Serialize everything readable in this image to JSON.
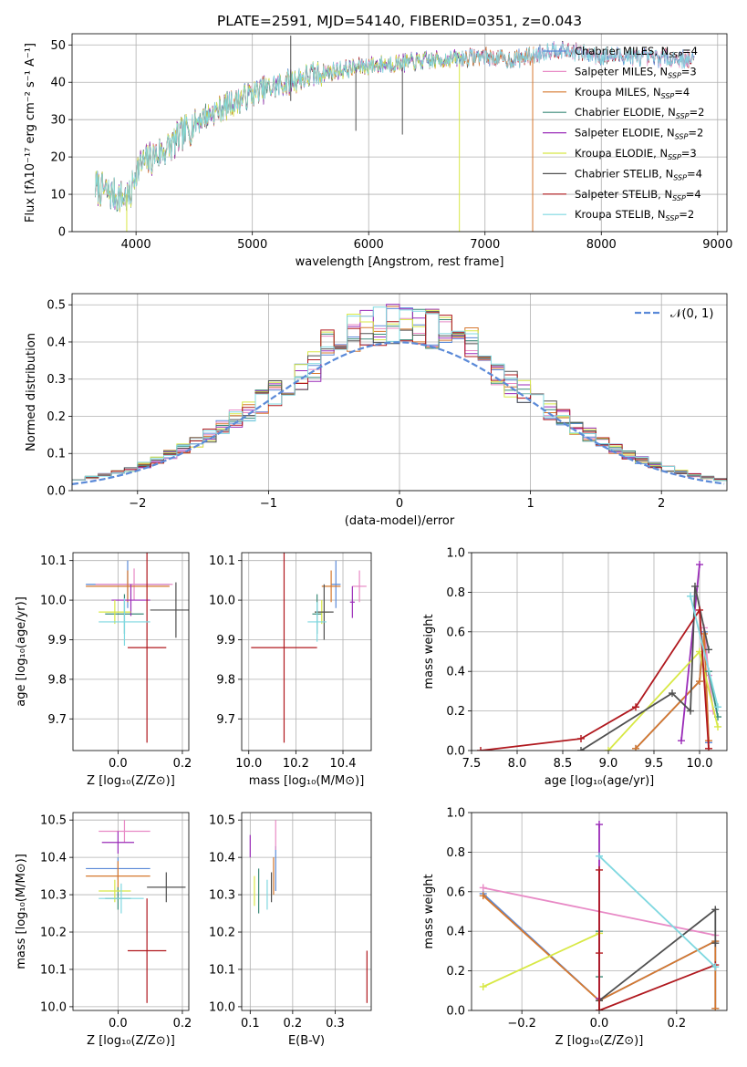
{
  "colors": {
    "Chabrier MILES": "#5b8ad8",
    "Salpeter MILES": "#e88ac6",
    "Kroupa MILES": "#d6782e",
    "Chabrier ELODIE": "#3a8a78",
    "Salpeter ELODIE": "#9a2bb8",
    "Kroupa ELODIE": "#d8e845",
    "Chabrier STELIB": "#505050",
    "Salpeter STELIB": "#b0181e",
    "Kroupa STELIB": "#7fd8e0"
  },
  "chart_data": [
    {
      "id": "spectrum",
      "type": "line",
      "title": "PLATE=2591, MJD=54140, FIBERID=0351, z=0.043",
      "xlabel": "wavelength [Angstrom, rest frame]",
      "ylabel": "Flux [fλ10⁻¹⁷ erg cm⁻² s⁻¹ A⁻¹]",
      "xlim": [
        3450,
        9080
      ],
      "ylim": [
        0,
        53
      ],
      "xticks": [
        4000,
        5000,
        6000,
        7000,
        8000,
        9000
      ],
      "yticks": [
        0,
        10,
        20,
        30,
        40,
        50
      ],
      "legend_position": "top-right",
      "legend": [
        {
          "model": "Chabrier MILES",
          "label": "Chabrier MILES, N",
          "sub": "SSP",
          "tail": "=4"
        },
        {
          "model": "Salpeter MILES",
          "label": "Salpeter MILES, N",
          "sub": "SSP",
          "tail": "=3"
        },
        {
          "model": "Kroupa MILES",
          "label": "Kroupa MILES, N",
          "sub": "SSP",
          "tail": "=4"
        },
        {
          "model": "Chabrier ELODIE",
          "label": "Chabrier ELODIE, N",
          "sub": "SSP",
          "tail": "=2"
        },
        {
          "model": "Salpeter ELODIE",
          "label": "Salpeter ELODIE, N",
          "sub": "SSP",
          "tail": "=2"
        },
        {
          "model": "Kroupa ELODIE",
          "label": "Kroupa ELODIE, N",
          "sub": "SSP",
          "tail": "=3"
        },
        {
          "model": "Chabrier STELIB",
          "label": "Chabrier STELIB, N",
          "sub": "SSP",
          "tail": "=4"
        },
        {
          "model": "Salpeter STELIB",
          "label": "Salpeter STELIB, N",
          "sub": "SSP",
          "tail": "=4"
        },
        {
          "model": "Kroupa STELIB",
          "label": "Kroupa STELIB, N",
          "sub": "SSP",
          "tail": "=2"
        }
      ],
      "continuum": {
        "x": [
          3650,
          3800,
          3950,
          4000,
          4100,
          4200,
          4300,
          4400,
          4500,
          4600,
          4800,
          5000,
          5200,
          5400,
          5600,
          5800,
          6000,
          6200,
          6400,
          6600,
          6800,
          7000,
          7200,
          7400,
          7600,
          7800,
          8000,
          8200,
          8400,
          8600,
          8800
        ],
        "y": [
          12,
          10,
          9,
          17,
          19,
          21,
          23,
          26,
          29,
          31,
          34,
          37,
          39,
          41,
          42.5,
          43.5,
          44.5,
          45,
          45.5,
          46,
          46.5,
          47,
          46,
          47,
          49,
          48,
          47,
          47,
          46.5,
          46.5,
          46
        ]
      },
      "spikes": [
        {
          "model": "Chabrier STELIB",
          "x": 5330,
          "top": 52.5,
          "bottom": 35
        },
        {
          "model": "Chabrier STELIB",
          "x": 5890,
          "top": 44,
          "bottom": 27
        },
        {
          "model": "Chabrier STELIB",
          "x": 6290,
          "top": 44,
          "bottom": 26
        },
        {
          "model": "Kroupa ELODIE",
          "x": 3920,
          "top": 10,
          "bottom": 0
        },
        {
          "model": "Kroupa ELODIE",
          "x": 6780,
          "top": 45,
          "bottom": 0
        },
        {
          "model": "Kroupa MILES",
          "x": 7410,
          "top": 47,
          "bottom": 0
        }
      ],
      "model_ranges": {
        "Chabrier MILES": [
          3650,
          8800
        ],
        "Salpeter MILES": [
          3650,
          8800
        ],
        "Kroupa MILES": [
          3650,
          7420
        ],
        "Chabrier ELODIE": [
          3650,
          6800
        ],
        "Salpeter ELODIE": [
          3650,
          6800
        ],
        "Kroupa ELODIE": [
          3650,
          6800
        ],
        "Chabrier STELIB": [
          3650,
          8800
        ],
        "Salpeter STELIB": [
          3650,
          8800
        ],
        "Kroupa STELIB": [
          3650,
          8800
        ]
      }
    },
    {
      "id": "residuals",
      "type": "step",
      "xlabel": "(data-model)/error",
      "ylabel": "Normed distribution",
      "xlim": [
        -2.5,
        2.5
      ],
      "ylim": [
        0,
        0.53
      ],
      "xticks": [
        -2,
        -1,
        0,
        1,
        2
      ],
      "yticks": [
        0.0,
        0.1,
        0.2,
        0.3,
        0.4,
        0.5
      ],
      "grid": true,
      "legend_position": "top-right",
      "gaussian_label": "𝒩(0, 1)",
      "gaussian_color": "#5b8ad8",
      "bin_width": 0.1
    },
    {
      "id": "age-vs-Z",
      "type": "errorbar",
      "xlabel": "Z [log₁₀(Z/Z⊙)]",
      "ylabel": "age  [log₁₀(age/yr)]",
      "xlim": [
        -0.14,
        0.22
      ],
      "ylim": [
        9.62,
        10.12
      ],
      "xticks": [
        0.0,
        0.2
      ],
      "yticks": [
        9.7,
        9.8,
        9.9,
        10.0,
        10.1
      ],
      "points": [
        {
          "model": "Chabrier MILES",
          "x": 0.03,
          "xerr": 0.13,
          "y": 10.04,
          "yerr": 0.06
        },
        {
          "model": "Salpeter MILES",
          "x": 0.05,
          "xerr": 0.12,
          "y": 10.04,
          "yerr": 0.04
        },
        {
          "model": "Kroupa MILES",
          "x": 0.03,
          "xerr": 0.13,
          "y": 10.035,
          "yerr": 0.04
        },
        {
          "model": "Chabrier ELODIE",
          "x": 0.02,
          "xerr": 0.06,
          "y": 9.965,
          "yerr": 0.05
        },
        {
          "model": "Salpeter ELODIE",
          "x": 0.04,
          "xerr": 0.06,
          "y": 10.0,
          "yerr": 0.04
        },
        {
          "model": "Kroupa ELODIE",
          "x": -0.01,
          "xerr": 0.05,
          "y": 9.97,
          "yerr": 0.03
        },
        {
          "model": "Chabrier STELIB",
          "x": 0.18,
          "xerr": 0.08,
          "y": 9.975,
          "yerr": 0.07
        },
        {
          "model": "Salpeter STELIB",
          "x": 0.09,
          "xerr": 0.06,
          "y": 9.88,
          "yerr": 0.24
        },
        {
          "model": "Kroupa STELIB",
          "x": 0.02,
          "xerr": 0.08,
          "y": 9.945,
          "yerr": 0.06
        }
      ]
    },
    {
      "id": "age-vs-mass",
      "type": "errorbar",
      "xlabel": "mass [log₁₀(M/M⊙)]",
      "ylabel": "",
      "xlim": [
        9.97,
        10.52
      ],
      "ylim": [
        9.62,
        10.12
      ],
      "xticks": [
        10.0,
        10.2,
        10.4
      ],
      "yticks": [
        9.7,
        9.8,
        9.9,
        10.0,
        10.1
      ],
      "points": [
        {
          "model": "Chabrier MILES",
          "x": 10.37,
          "xerr": 0.02,
          "y": 10.04,
          "yerr": 0.06
        },
        {
          "model": "Salpeter MILES",
          "x": 10.47,
          "xerr": 0.03,
          "y": 10.035,
          "yerr": 0.04
        },
        {
          "model": "Kroupa MILES",
          "x": 10.35,
          "xerr": 0.04,
          "y": 10.035,
          "yerr": 0.04
        },
        {
          "model": "Chabrier ELODIE",
          "x": 10.29,
          "xerr": 0.02,
          "y": 9.965,
          "yerr": 0.05
        },
        {
          "model": "Salpeter ELODIE",
          "x": 10.44,
          "xerr": 0.01,
          "y": 9.995,
          "yerr": 0.04
        },
        {
          "model": "Kroupa ELODIE",
          "x": 10.31,
          "xerr": 0.03,
          "y": 9.97,
          "yerr": 0.03
        },
        {
          "model": "Chabrier STELIB",
          "x": 10.32,
          "xerr": 0.04,
          "y": 9.97,
          "yerr": 0.07
        },
        {
          "model": "Salpeter STELIB",
          "x": 10.15,
          "xerr": 0.14,
          "y": 9.88,
          "yerr": 0.24
        },
        {
          "model": "Kroupa STELIB",
          "x": 10.29,
          "xerr": 0.04,
          "y": 9.945,
          "yerr": 0.05
        }
      ]
    },
    {
      "id": "weight-vs-age",
      "type": "line",
      "xlabel": "age  [log₁₀(age/yr)]",
      "ylabel": "mass weight",
      "xlim": [
        7.5,
        10.3
      ],
      "ylim": [
        0,
        1.0
      ],
      "xticks": [
        7.5,
        8.0,
        8.5,
        9.0,
        9.5,
        10.0
      ],
      "yticks": [
        0.0,
        0.2,
        0.4,
        0.6,
        0.8,
        1.0
      ],
      "grid": true,
      "series": [
        {
          "model": "Chabrier MILES",
          "x": [
            9.3,
            10.0,
            10.05,
            10.1
          ],
          "y": [
            0.01,
            0.35,
            0.6,
            0.04
          ]
        },
        {
          "model": "Salpeter MILES",
          "x": [
            10.05,
            10.1,
            10.15
          ],
          "y": [
            0.62,
            0.38,
            0.2
          ]
        },
        {
          "model": "Kroupa MILES",
          "x": [
            9.3,
            10.0,
            10.05,
            10.1
          ],
          "y": [
            0.01,
            0.35,
            0.59,
            0.05
          ]
        },
        {
          "model": "Chabrier ELODIE",
          "x": [
            10.1,
            10.2
          ],
          "y": [
            0.4,
            0.17
          ]
        },
        {
          "model": "Salpeter ELODIE",
          "x": [
            9.8,
            10.0
          ],
          "y": [
            0.05,
            0.94
          ]
        },
        {
          "model": "Kroupa ELODIE",
          "x": [
            9.0,
            10.0,
            10.2
          ],
          "y": [
            0.0,
            0.5,
            0.12
          ]
        },
        {
          "model": "Chabrier STELIB",
          "x": [
            8.7,
            9.7,
            9.9,
            9.95,
            10.1
          ],
          "y": [
            0.0,
            0.29,
            0.2,
            0.83,
            0.51
          ]
        },
        {
          "model": "Salpeter STELIB",
          "x": [
            7.6,
            8.7,
            9.3,
            10.0,
            10.1
          ],
          "y": [
            0.0,
            0.06,
            0.22,
            0.71,
            0.01
          ]
        },
        {
          "model": "Kroupa STELIB",
          "x": [
            9.9,
            10.2
          ],
          "y": [
            0.78,
            0.22
          ]
        }
      ]
    },
    {
      "id": "mass-vs-Z",
      "type": "errorbar",
      "xlabel": "Z [log₁₀(Z/Z⊙)]",
      "ylabel": "mass [log₁₀(M/M⊙)]",
      "xlim": [
        -0.14,
        0.22
      ],
      "ylim": [
        9.99,
        10.52
      ],
      "xticks": [
        0.0,
        0.2
      ],
      "yticks": [
        10.0,
        10.1,
        10.2,
        10.3,
        10.4,
        10.5
      ],
      "points": [
        {
          "model": "Chabrier MILES",
          "x": 0.0,
          "xerr": 0.1,
          "y": 10.37,
          "yerr": 0.03
        },
        {
          "model": "Salpeter MILES",
          "x": 0.02,
          "xerr": 0.08,
          "y": 10.47,
          "yerr": 0.03
        },
        {
          "model": "Kroupa MILES",
          "x": 0.0,
          "xerr": 0.1,
          "y": 10.35,
          "yerr": 0.04
        },
        {
          "model": "Chabrier ELODIE",
          "x": 0.0,
          "xerr": 0.04,
          "y": 10.29,
          "yerr": 0.03
        },
        {
          "model": "Salpeter ELODIE",
          "x": 0.0,
          "xerr": 0.05,
          "y": 10.44,
          "yerr": 0.03
        },
        {
          "model": "Kroupa ELODIE",
          "x": -0.01,
          "xerr": 0.05,
          "y": 10.31,
          "yerr": 0.03
        },
        {
          "model": "Chabrier STELIB",
          "x": 0.15,
          "xerr": 0.06,
          "y": 10.32,
          "yerr": 0.04
        },
        {
          "model": "Salpeter STELIB",
          "x": 0.09,
          "xerr": 0.06,
          "y": 10.15,
          "yerr": 0.14
        },
        {
          "model": "Kroupa STELIB",
          "x": 0.01,
          "xerr": 0.07,
          "y": 10.29,
          "yerr": 0.04
        }
      ]
    },
    {
      "id": "mass-vs-ebv",
      "type": "errorbar",
      "xlabel": "E(B-V)",
      "ylabel": "",
      "xlim": [
        0.08,
        0.385
      ],
      "ylim": [
        9.99,
        10.52
      ],
      "xticks": [
        0.1,
        0.2,
        0.3
      ],
      "yticks": [
        10.0,
        10.1,
        10.2,
        10.3,
        10.4,
        10.5
      ],
      "points": [
        {
          "model": "Chabrier MILES",
          "x": 0.16,
          "xerr": 0.0,
          "y": 10.37,
          "yerr": 0.06
        },
        {
          "model": "Salpeter MILES",
          "x": 0.16,
          "xerr": 0.0,
          "y": 10.46,
          "yerr": 0.04
        },
        {
          "model": "Kroupa MILES",
          "x": 0.155,
          "xerr": 0.0,
          "y": 10.35,
          "yerr": 0.05
        },
        {
          "model": "Chabrier ELODIE",
          "x": 0.12,
          "xerr": 0.0,
          "y": 10.31,
          "yerr": 0.06
        },
        {
          "model": "Salpeter ELODIE",
          "x": 0.1,
          "xerr": 0.0,
          "y": 10.43,
          "yerr": 0.03
        },
        {
          "model": "Kroupa ELODIE",
          "x": 0.11,
          "xerr": 0.0,
          "y": 10.31,
          "yerr": 0.04
        },
        {
          "model": "Chabrier STELIB",
          "x": 0.15,
          "xerr": 0.0,
          "y": 10.32,
          "yerr": 0.04
        },
        {
          "model": "Salpeter STELIB",
          "x": 0.375,
          "xerr": 0.0,
          "y": 10.08,
          "yerr": 0.07
        },
        {
          "model": "Kroupa STELIB",
          "x": 0.14,
          "xerr": 0.0,
          "y": 10.3,
          "yerr": 0.04
        }
      ]
    },
    {
      "id": "weight-vs-Z",
      "type": "line",
      "xlabel": "Z [log₁₀(Z/Z⊙)]",
      "ylabel": "mass weight",
      "xlim": [
        -0.33,
        0.33
      ],
      "ylim": [
        0,
        1.0
      ],
      "xticks": [
        -0.2,
        0.0,
        0.2
      ],
      "yticks": [
        0.0,
        0.2,
        0.4,
        0.6,
        0.8,
        1.0
      ],
      "grid": true,
      "series": [
        {
          "model": "Chabrier MILES",
          "x": [
            -0.3,
            0.0,
            0.3,
            0.3
          ],
          "y": [
            0.59,
            0.05,
            0.35,
            0.01
          ]
        },
        {
          "model": "Salpeter MILES",
          "x": [
            -0.3,
            0.3
          ],
          "y": [
            0.62,
            0.38
          ]
        },
        {
          "model": "Kroupa MILES",
          "x": [
            -0.3,
            0.0,
            0.3,
            0.3
          ],
          "y": [
            0.58,
            0.05,
            0.35,
            0.01
          ]
        },
        {
          "model": "Chabrier ELODIE",
          "x": [
            0.0,
            0.0
          ],
          "y": [
            0.4,
            0.17
          ]
        },
        {
          "model": "Salpeter ELODIE",
          "x": [
            0.0,
            0.0
          ],
          "y": [
            0.06,
            0.94
          ]
        },
        {
          "model": "Kroupa ELODIE",
          "x": [
            -0.3,
            0.0
          ],
          "y": [
            0.12,
            0.39
          ]
        },
        {
          "model": "Chabrier STELIB",
          "x": [
            0.0,
            0.0,
            0.3,
            0.3
          ],
          "y": [
            0.0,
            0.05,
            0.51,
            0.34
          ]
        },
        {
          "model": "Salpeter STELIB",
          "x": [
            0.0,
            0.0,
            0.0,
            0.3
          ],
          "y": [
            0.71,
            0.29,
            0.0,
            0.23
          ]
        },
        {
          "model": "Kroupa STELIB",
          "x": [
            0.0,
            0.3
          ],
          "y": [
            0.78,
            0.22
          ]
        }
      ]
    }
  ]
}
